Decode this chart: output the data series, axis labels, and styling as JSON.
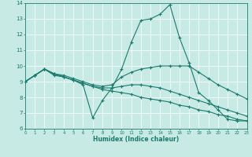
{
  "xlabel": "Humidex (Indice chaleur)",
  "xlim": [
    0,
    23
  ],
  "ylim": [
    6,
    14
  ],
  "yticks": [
    6,
    7,
    8,
    9,
    10,
    11,
    12,
    13,
    14
  ],
  "xticks": [
    0,
    1,
    2,
    3,
    4,
    5,
    6,
    7,
    8,
    9,
    10,
    11,
    12,
    13,
    14,
    15,
    16,
    17,
    18,
    19,
    20,
    21,
    22,
    23
  ],
  "bg_color": "#c8eae4",
  "grid_color": "#ffffff",
  "line_color": "#1a7a6e",
  "lines": [
    [
      9.0,
      9.4,
      9.8,
      9.4,
      9.3,
      9.1,
      8.8,
      6.7,
      7.8,
      8.6,
      9.8,
      11.5,
      12.9,
      13.0,
      13.3,
      13.9,
      11.8,
      10.2,
      8.3,
      7.8,
      7.2,
      6.6,
      6.5,
      6.5
    ],
    [
      9.0,
      9.4,
      9.8,
      9.5,
      9.4,
      9.2,
      9.0,
      8.8,
      8.7,
      8.8,
      9.3,
      9.6,
      9.8,
      9.9,
      10.0,
      10.0,
      10.0,
      10.0,
      9.6,
      9.2,
      8.8,
      8.5,
      8.2,
      7.9
    ],
    [
      9.0,
      9.4,
      9.8,
      9.5,
      9.3,
      9.1,
      8.9,
      8.7,
      8.6,
      8.6,
      8.7,
      8.8,
      8.8,
      8.7,
      8.6,
      8.4,
      8.2,
      8.0,
      7.8,
      7.6,
      7.4,
      7.2,
      7.0,
      6.8
    ],
    [
      9.0,
      9.4,
      9.8,
      9.5,
      9.3,
      9.1,
      8.9,
      8.7,
      8.5,
      8.4,
      8.3,
      8.2,
      8.0,
      7.9,
      7.8,
      7.7,
      7.5,
      7.4,
      7.2,
      7.1,
      6.9,
      6.8,
      6.6,
      6.5
    ]
  ]
}
